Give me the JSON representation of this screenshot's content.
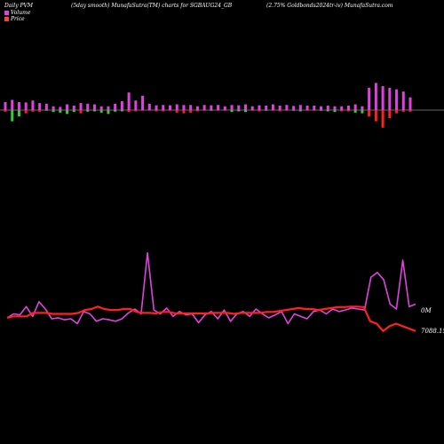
{
  "header": {
    "left": "Daily PVM",
    "mid_a": "(5day smooth) MunafaSutra(TM) charts for SGBAUG24_GB",
    "mid_b": "",
    "right": "(2.75% Goldbonds2024tr-iv) MunafaSutra.com"
  },
  "legend": {
    "volume_label": "Volume",
    "price_label": "Price",
    "volume_color": "#e040e0",
    "price_color": "#ff4040"
  },
  "colors": {
    "background": "#000000",
    "baseline": "#cccccc",
    "volume_up": "#e040e0",
    "volume_down_green": "#33cc33",
    "volume_down_red": "#ff2020",
    "price_line": "#ff2020",
    "volume_line": "#dd44dd"
  },
  "chart_data": {
    "type": "line",
    "series_labels": {
      "volume_end": "0M",
      "price_end": "7088.15"
    },
    "volume_bars": {
      "up": [
        0.25,
        0.32,
        0.25,
        0.24,
        0.3,
        0.22,
        0.2,
        0.12,
        0.1,
        0.18,
        0.14,
        0.22,
        0.2,
        0.18,
        0.12,
        0.12,
        0.2,
        0.28,
        0.55,
        0.3,
        0.45,
        0.2,
        0.15,
        0.16,
        0.15,
        0.18,
        0.16,
        0.16,
        0.12,
        0.16,
        0.15,
        0.16,
        0.12,
        0.16,
        0.15,
        0.18,
        0.12,
        0.15,
        0.14,
        0.18,
        0.14,
        0.16,
        0.13,
        0.16,
        0.14,
        0.14,
        0.12,
        0.14,
        0.12,
        0.12,
        0.14,
        0.18,
        0.12,
        0.7,
        0.85,
        0.75,
        0.7,
        0.65,
        0.58,
        0.4
      ],
      "down": [
        0.05,
        0.35,
        0.2,
        0.1,
        0.05,
        0.05,
        0.02,
        0.06,
        0.08,
        0.12,
        0.06,
        0.1,
        0.05,
        0.04,
        0.08,
        0.12,
        0.05,
        0.04,
        0.06,
        0.04,
        0.02,
        0.02,
        0.04,
        0.04,
        0.02,
        0.08,
        0.1,
        0.08,
        0.04,
        0.02,
        0.02,
        0.02,
        0.02,
        0.06,
        0.04,
        0.06,
        0.02,
        0.04,
        0.02,
        0.02,
        0.04,
        0.02,
        0.02,
        0.04,
        0.02,
        0.02,
        0.02,
        0.04,
        0.06,
        0.04,
        0.04,
        0.08,
        0.1,
        0.2,
        0.35,
        0.55,
        0.25,
        0.1,
        0.05,
        0.05
      ],
      "down_colors": [
        "r",
        "g",
        "g",
        "r",
        "r",
        "r",
        "g",
        "g",
        "g",
        "g",
        "g",
        "r",
        "g",
        "g",
        "g",
        "g",
        "g",
        "g",
        "r",
        "r",
        "r",
        "r",
        "r",
        "r",
        "r",
        "r",
        "r",
        "r",
        "r",
        "r",
        "g",
        "r",
        "r",
        "g",
        "g",
        "g",
        "r",
        "r",
        "g",
        "r",
        "r",
        "r",
        "g",
        "g",
        "r",
        "r",
        "g",
        "g",
        "g",
        "r",
        "r",
        "g",
        "g",
        "r",
        "r",
        "r",
        "r",
        "r",
        "r",
        "r"
      ]
    },
    "volume_line": [
      0.22,
      0.3,
      0.28,
      0.45,
      0.25,
      0.55,
      0.4,
      0.2,
      0.22,
      0.18,
      0.2,
      0.1,
      0.35,
      0.3,
      0.15,
      0.2,
      0.18,
      0.15,
      0.2,
      0.32,
      0.4,
      0.3,
      1.55,
      0.38,
      0.3,
      0.42,
      0.25,
      0.35,
      0.28,
      0.3,
      0.12,
      0.28,
      0.35,
      0.2,
      0.38,
      0.15,
      0.3,
      0.35,
      0.25,
      0.4,
      0.3,
      0.22,
      0.28,
      0.35,
      0.1,
      0.3,
      0.25,
      0.2,
      0.35,
      0.38,
      0.3,
      0.4,
      0.35,
      0.38,
      0.42,
      0.4,
      0.38,
      1.05,
      1.15,
      1.0,
      0.5,
      0.4,
      1.4,
      0.45,
      0.5
    ],
    "price_line": [
      0.22,
      0.25,
      0.25,
      0.25,
      0.32,
      0.32,
      0.32,
      0.3,
      0.3,
      0.3,
      0.3,
      0.32,
      0.38,
      0.4,
      0.45,
      0.4,
      0.38,
      0.38,
      0.4,
      0.4,
      0.34,
      0.32,
      0.32,
      0.31,
      0.34,
      0.34,
      0.31,
      0.31,
      0.31,
      0.31,
      0.31,
      0.31,
      0.32,
      0.32,
      0.32,
      0.3,
      0.32,
      0.32,
      0.32,
      0.32,
      0.34,
      0.34,
      0.36,
      0.38,
      0.4,
      0.42,
      0.4,
      0.4,
      0.38,
      0.4,
      0.42,
      0.44,
      0.44,
      0.45,
      0.45,
      0.44,
      0.15,
      0.1,
      -0.05,
      0.05,
      0.1,
      0.05,
      0.0,
      -0.05
    ]
  }
}
